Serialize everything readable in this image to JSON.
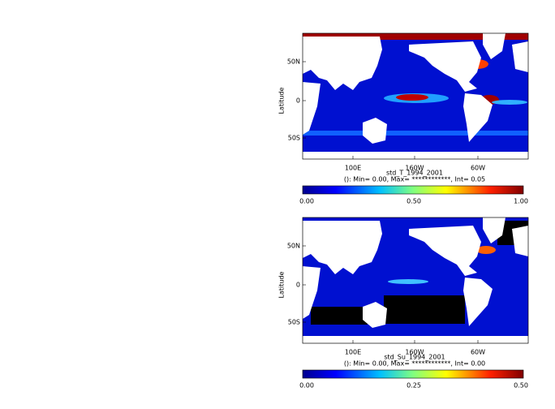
{
  "maps": [
    {
      "title": "std_T_1994_2001",
      "subtitle": "(): Min= 0.00, Max= ************, Int= 0.05",
      "ylabel": "Latitude",
      "lat_ticks": [
        "50N",
        "0",
        "50S"
      ],
      "lon_ticks": [
        "100E",
        "160W",
        "60W"
      ],
      "colorbar_ticks": [
        "0.00",
        "0.50",
        "1.00"
      ]
    },
    {
      "title": "std_Su_1994_2001",
      "subtitle": "(): Min= 0.00, Max= ************, Int= 0.00",
      "ylabel": "Latitude",
      "lat_ticks": [
        "50N",
        "0",
        "50S"
      ],
      "lon_ticks": [
        "100E",
        "160W",
        "60W"
      ],
      "colorbar_ticks": [
        "0.00",
        "0.25",
        "0.50"
      ]
    }
  ]
}
